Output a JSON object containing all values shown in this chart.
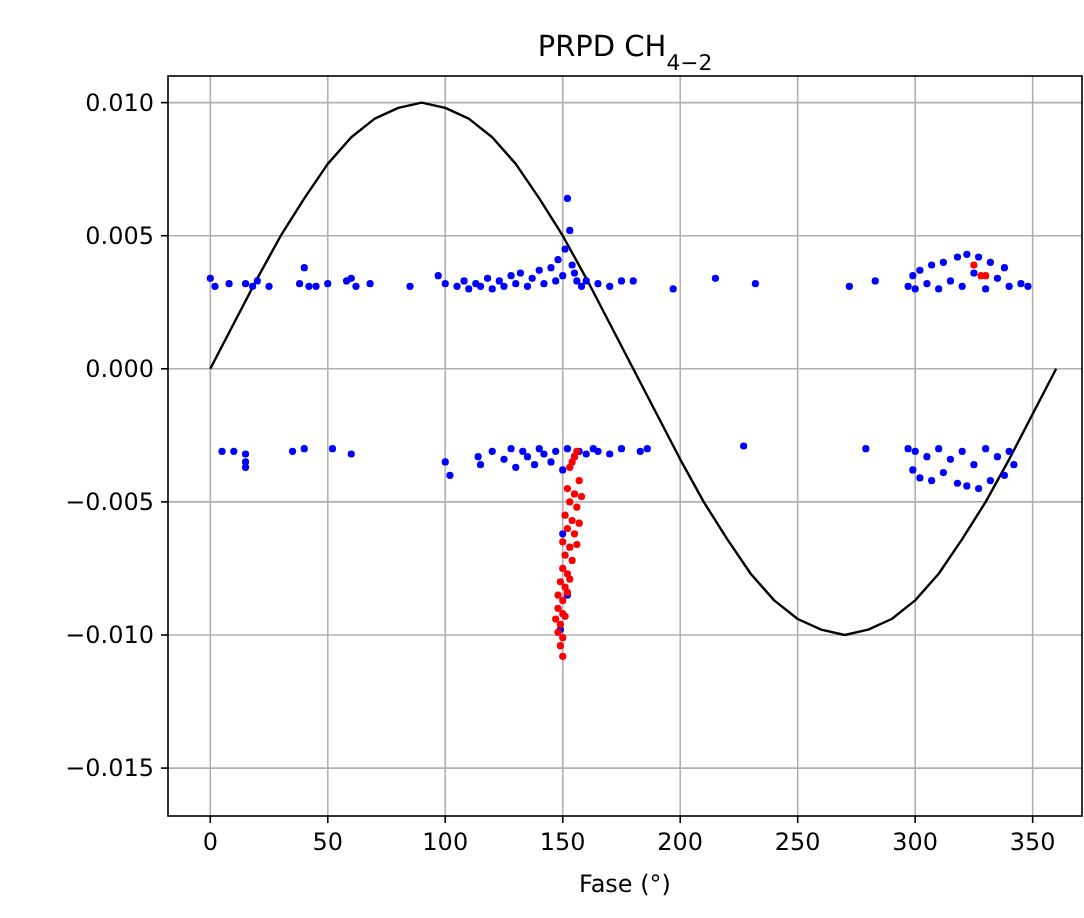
{
  "chart_data": {
    "type": "scatter",
    "title": "PRPD CH$_{4−2}$",
    "xlabel": "Fase (°)",
    "xlim": [
      -18,
      371
    ],
    "ylim": [
      -0.0168,
      0.011
    ],
    "xticks": [
      0,
      50,
      100,
      150,
      200,
      250,
      300,
      350
    ],
    "yticks": [
      {
        "value": -0.015,
        "label": "−0.015"
      },
      {
        "value": -0.01,
        "label": "−0.010"
      },
      {
        "value": -0.005,
        "label": "−0.005"
      },
      {
        "value": 0,
        "label": "0.000"
      },
      {
        "value": 0.005,
        "label": "0.005"
      },
      {
        "value": 0.01,
        "label": "0.010"
      }
    ],
    "grid": true,
    "marker": "circle",
    "series": [
      {
        "type": "line",
        "color": "#000000",
        "marker": "none",
        "x": [
          0,
          10,
          20,
          30,
          40,
          50,
          60,
          70,
          80,
          90,
          100,
          110,
          120,
          130,
          140,
          150,
          160,
          170,
          180,
          190,
          200,
          210,
          220,
          230,
          240,
          250,
          260,
          270,
          280,
          290,
          300,
          310,
          320,
          330,
          340,
          350,
          360
        ],
        "values": [
          0,
          0.0017,
          0.0034,
          0.005,
          0.0064,
          0.0077,
          0.0087,
          0.0094,
          0.0098,
          0.01,
          0.0098,
          0.0094,
          0.0087,
          0.0077,
          0.0064,
          0.005,
          0.0034,
          0.0017,
          0,
          -0.0017,
          -0.0034,
          -0.005,
          -0.0064,
          -0.0077,
          -0.0087,
          -0.0094,
          -0.0098,
          -0.01,
          -0.0098,
          -0.0094,
          -0.0087,
          -0.0077,
          -0.0064,
          -0.005,
          -0.0034,
          -0.0017,
          0
        ]
      },
      {
        "color": "#0000ff",
        "x": [
          0,
          2,
          8,
          15,
          18,
          20,
          25,
          38,
          40,
          42,
          45,
          50,
          58,
          60,
          62,
          68,
          85,
          97,
          100,
          105,
          108,
          110,
          113,
          115,
          118,
          120,
          123,
          125,
          128,
          130,
          132,
          135,
          137,
          140,
          142,
          145,
          147,
          148,
          150,
          151,
          152,
          153,
          154,
          155,
          156,
          158,
          160,
          165,
          170,
          175,
          180,
          197,
          215,
          232,
          272,
          283,
          297,
          299,
          300,
          302,
          305,
          307,
          310,
          312,
          315,
          318,
          320,
          322,
          325,
          327,
          330,
          332,
          335,
          338,
          340,
          345,
          348,
          5,
          10,
          15,
          15,
          15,
          35,
          40,
          52,
          60,
          100,
          102,
          114,
          115,
          120,
          125,
          128,
          130,
          133,
          135,
          138,
          140,
          142,
          145,
          147,
          150,
          152,
          155,
          157,
          160,
          163,
          165,
          170,
          175,
          183,
          186,
          227,
          279,
          297,
          299,
          300,
          302,
          305,
          307,
          310,
          312,
          315,
          318,
          320,
          322,
          325,
          327,
          330,
          332,
          335,
          338,
          340,
          342,
          150,
          152,
          149
        ],
        "values": [
          0.0034,
          0.0031,
          0.0032,
          0.0032,
          0.0031,
          0.0033,
          0.0031,
          0.0032,
          0.0038,
          0.0031,
          0.0031,
          0.0032,
          0.0033,
          0.0034,
          0.0031,
          0.0032,
          0.0031,
          0.0035,
          0.0032,
          0.0031,
          0.0033,
          0.003,
          0.0032,
          0.0031,
          0.0034,
          0.003,
          0.0033,
          0.0031,
          0.0035,
          0.0032,
          0.0036,
          0.0031,
          0.0034,
          0.0037,
          0.0032,
          0.0038,
          0.0033,
          0.0041,
          0.0035,
          0.0045,
          0.0064,
          0.0052,
          0.0039,
          0.0036,
          0.0033,
          0.0031,
          0.0033,
          0.0032,
          0.0031,
          0.0033,
          0.0033,
          0.003,
          0.0034,
          0.0032,
          0.0031,
          0.0033,
          0.0031,
          0.0035,
          0.003,
          0.0037,
          0.0032,
          0.0039,
          0.003,
          0.004,
          0.0033,
          0.0042,
          0.0031,
          0.0043,
          0.0036,
          0.0042,
          0.003,
          0.004,
          0.0034,
          0.0038,
          0.0031,
          0.0032,
          0.0031,
          -0.0031,
          -0.0031,
          -0.0032,
          -0.0035,
          -0.0037,
          -0.0031,
          -0.003,
          -0.003,
          -0.0032,
          -0.0035,
          -0.004,
          -0.0033,
          -0.0036,
          -0.0031,
          -0.0034,
          -0.003,
          -0.0037,
          -0.0031,
          -0.0033,
          -0.0036,
          -0.003,
          -0.0032,
          -0.0035,
          -0.0031,
          -0.0038,
          -0.003,
          -0.0033,
          -0.0031,
          -0.0032,
          -0.003,
          -0.0031,
          -0.0032,
          -0.003,
          -0.0031,
          -0.003,
          -0.0029,
          -0.003,
          -0.003,
          -0.0038,
          -0.0031,
          -0.0041,
          -0.0033,
          -0.0042,
          -0.003,
          -0.0039,
          -0.0034,
          -0.0043,
          -0.0031,
          -0.0044,
          -0.0036,
          -0.0045,
          -0.003,
          -0.0042,
          -0.0033,
          -0.004,
          -0.0031,
          -0.0036,
          -0.0062,
          -0.0085,
          -0.0098
        ]
      },
      {
        "color": "#ff0000",
        "x": [
          155,
          154,
          153,
          156,
          157,
          152,
          155,
          158,
          153,
          156,
          151,
          154,
          157,
          152,
          155,
          150,
          153,
          156,
          151,
          154,
          150,
          152,
          149,
          151,
          153,
          148,
          150,
          152,
          148,
          150,
          147,
          149,
          151,
          148,
          150,
          149,
          150,
          325,
          328,
          330
        ],
        "values": [
          -0.0033,
          -0.0035,
          -0.0037,
          -0.0031,
          -0.0042,
          -0.0045,
          -0.0047,
          -0.0048,
          -0.005,
          -0.0052,
          -0.0055,
          -0.0057,
          -0.0058,
          -0.006,
          -0.0062,
          -0.0065,
          -0.0067,
          -0.0066,
          -0.007,
          -0.0072,
          -0.0075,
          -0.0077,
          -0.008,
          -0.0082,
          -0.0079,
          -0.0085,
          -0.0087,
          -0.0084,
          -0.009,
          -0.0092,
          -0.0094,
          -0.0096,
          -0.0093,
          -0.0099,
          -0.0101,
          -0.0104,
          -0.0108,
          0.0039,
          0.0035,
          0.0035
        ]
      }
    ]
  }
}
